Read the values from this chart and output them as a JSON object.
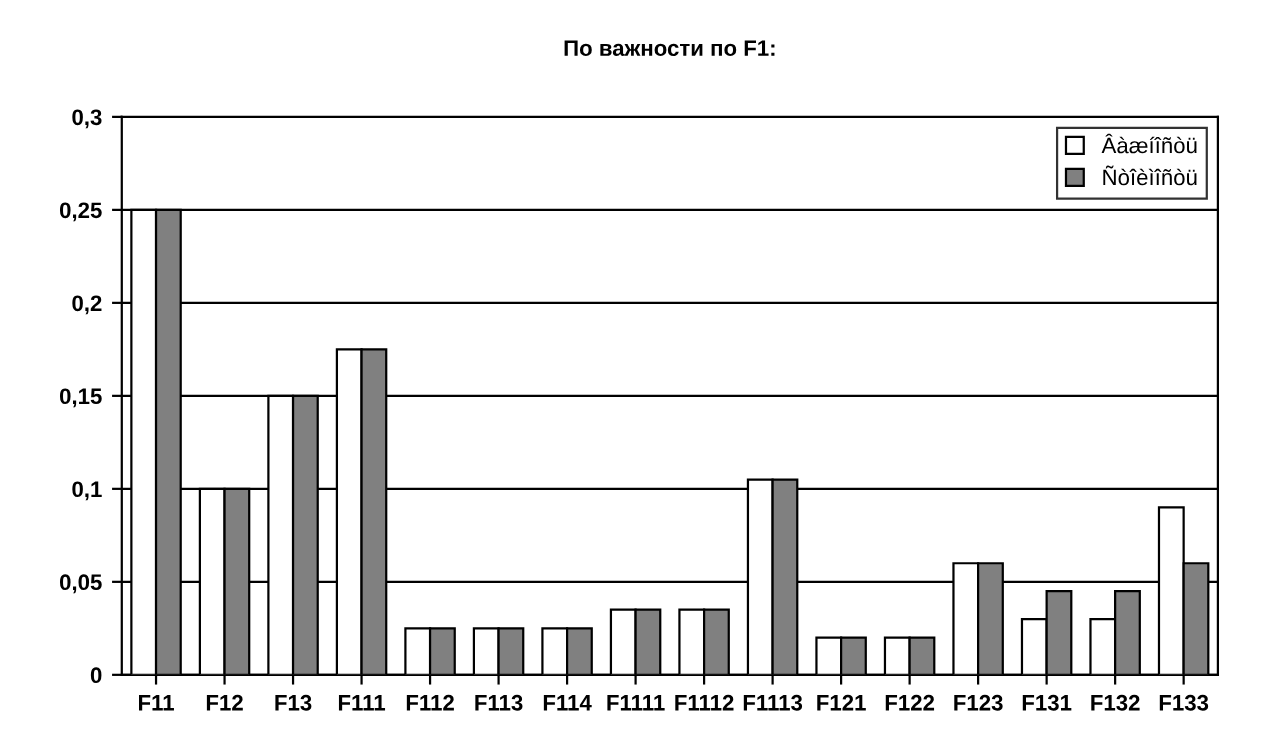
{
  "chart_data": {
    "type": "bar",
    "title": "По важности по F1:",
    "categories": [
      "F11",
      "F12",
      "F13",
      "F111",
      "F112",
      "F113",
      "F114",
      "F1111",
      "F1112",
      "F1113",
      "F121",
      "F122",
      "F123",
      "F131",
      "F132",
      "F133"
    ],
    "series": [
      {
        "name": "Âàæíîñòü",
        "color": "#ffffff",
        "values": [
          0.25,
          0.1,
          0.15,
          0.175,
          0.025,
          0.025,
          0.025,
          0.035,
          0.035,
          0.105,
          0.02,
          0.02,
          0.06,
          0.03,
          0.03,
          0.09
        ]
      },
      {
        "name": "Ñòîèìîñòü",
        "color": "#808080",
        "values": [
          0.25,
          0.1,
          0.15,
          0.175,
          0.025,
          0.025,
          0.025,
          0.035,
          0.035,
          0.105,
          0.02,
          0.02,
          0.06,
          0.045,
          0.045,
          0.06
        ]
      }
    ],
    "ylim": [
      0,
      0.3
    ],
    "yticks": [
      {
        "value": 0,
        "label": "0"
      },
      {
        "value": 0.05,
        "label": "0,05"
      },
      {
        "value": 0.1,
        "label": "0,1"
      },
      {
        "value": 0.15,
        "label": "0,15"
      },
      {
        "value": 0.2,
        "label": "0,2"
      },
      {
        "value": 0.25,
        "label": "0,25"
      },
      {
        "value": 0.3,
        "label": "0,3"
      }
    ],
    "grid": "y",
    "legend": "top right"
  }
}
